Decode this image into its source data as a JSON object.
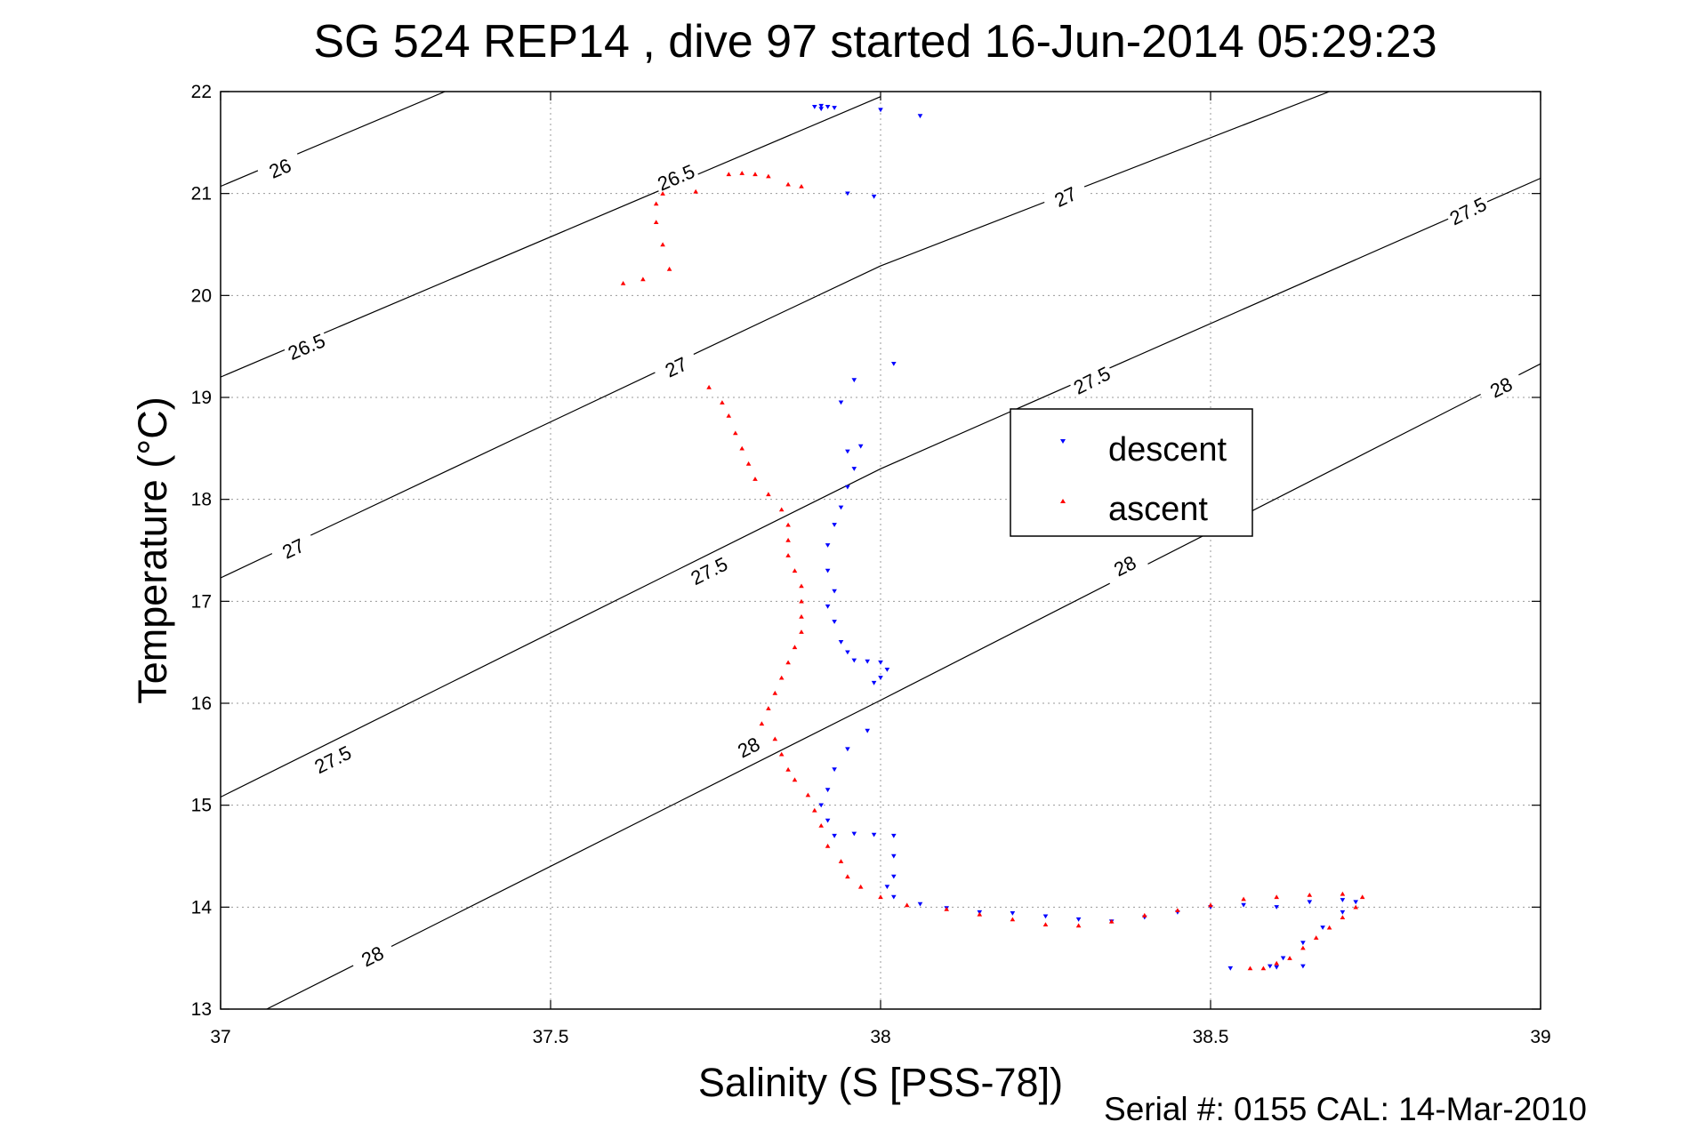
{
  "title": "SG 524   REP14  , dive 97 started 16-Jun-2014 05:29:23",
  "footer": "Serial #: 0155  CAL: 14-Mar-2010",
  "chart_data": {
    "type": "scatter",
    "xlabel": "Salinity (S [PSS-78])",
    "ylabel": "Temperature (°C)",
    "xlim": [
      37,
      39
    ],
    "ylim": [
      13,
      22
    ],
    "xticks": [
      37,
      37.5,
      38,
      38.5,
      39
    ],
    "xtick_labels": [
      "37",
      "37.5",
      "38",
      "38.5",
      "39"
    ],
    "yticks": [
      13,
      14,
      15,
      16,
      17,
      18,
      19,
      20,
      21,
      22
    ],
    "ytick_labels": [
      "13",
      "14",
      "15",
      "16",
      "17",
      "18",
      "19",
      "20",
      "21",
      "22"
    ],
    "grid": true,
    "legend_position": "right-center",
    "legend": [
      "descent",
      "ascent"
    ],
    "colors": {
      "descent": "#0000ff",
      "ascent": "#ff0000",
      "contour": "#000000"
    },
    "isopycnals": [
      {
        "label": "26",
        "points": [
          [
            37.0,
            21.07
          ],
          [
            37.34,
            22.0
          ]
        ],
        "label_positions": [
          [
            37.09,
            21.25
          ]
        ]
      },
      {
        "label": "26.5",
        "points": [
          [
            37.0,
            19.2
          ],
          [
            38.0,
            21.95
          ]
        ],
        "label_positions": [
          [
            37.13,
            19.5
          ],
          [
            37.69,
            21.16
          ]
        ]
      },
      {
        "label": "27",
        "points": [
          [
            37.0,
            17.23
          ],
          [
            38.0,
            20.29
          ],
          [
            38.68,
            22.0
          ]
        ],
        "label_positions": [
          [
            37.11,
            17.52
          ],
          [
            37.69,
            19.3
          ],
          [
            38.28,
            20.97
          ]
        ]
      },
      {
        "label": "27.5",
        "points": [
          [
            37.0,
            15.08
          ],
          [
            38.0,
            18.3
          ],
          [
            39.0,
            21.15
          ]
        ],
        "label_positions": [
          [
            37.17,
            15.45
          ],
          [
            37.74,
            17.3
          ],
          [
            38.32,
            19.17
          ],
          [
            38.89,
            20.83
          ]
        ]
      },
      {
        "label": "28",
        "points": [
          [
            37.07,
            13.0
          ],
          [
            38.0,
            16.03
          ],
          [
            39.0,
            19.33
          ]
        ],
        "label_positions": [
          [
            37.23,
            13.52
          ],
          [
            37.8,
            15.57
          ],
          [
            38.37,
            17.35
          ],
          [
            38.94,
            19.1
          ]
        ]
      }
    ],
    "series": [
      {
        "name": "descent",
        "marker": "triangle-down",
        "points": [
          [
            37.9,
            21.85
          ],
          [
            37.91,
            21.86
          ],
          [
            37.92,
            21.85
          ],
          [
            37.93,
            21.84
          ],
          [
            37.91,
            21.83
          ],
          [
            38.0,
            21.82
          ],
          [
            38.06,
            21.76
          ],
          [
            37.95,
            21.0
          ],
          [
            37.99,
            20.97
          ],
          [
            38.02,
            19.33
          ],
          [
            37.96,
            19.17
          ],
          [
            37.94,
            18.95
          ],
          [
            37.97,
            18.52
          ],
          [
            37.95,
            18.47
          ],
          [
            37.96,
            18.3
          ],
          [
            37.95,
            18.12
          ],
          [
            37.94,
            17.92
          ],
          [
            37.93,
            17.75
          ],
          [
            37.92,
            17.55
          ],
          [
            37.92,
            17.3
          ],
          [
            37.93,
            17.1
          ],
          [
            37.92,
            16.95
          ],
          [
            37.93,
            16.8
          ],
          [
            37.94,
            16.6
          ],
          [
            37.95,
            16.5
          ],
          [
            37.96,
            16.42
          ],
          [
            37.98,
            16.41
          ],
          [
            38.0,
            16.4
          ],
          [
            38.01,
            16.33
          ],
          [
            38.0,
            16.25
          ],
          [
            37.99,
            16.2
          ],
          [
            37.98,
            15.73
          ],
          [
            37.95,
            15.55
          ],
          [
            37.93,
            15.35
          ],
          [
            37.92,
            15.15
          ],
          [
            37.91,
            15.0
          ],
          [
            37.92,
            14.85
          ],
          [
            37.93,
            14.7
          ],
          [
            37.96,
            14.72
          ],
          [
            37.99,
            14.71
          ],
          [
            38.02,
            14.7
          ],
          [
            38.02,
            14.5
          ],
          [
            38.02,
            14.3
          ],
          [
            38.01,
            14.2
          ],
          [
            38.02,
            14.1
          ],
          [
            38.06,
            14.03
          ],
          [
            38.1,
            13.99
          ],
          [
            38.15,
            13.95
          ],
          [
            38.2,
            13.94
          ],
          [
            38.25,
            13.91
          ],
          [
            38.3,
            13.88
          ],
          [
            38.35,
            13.86
          ],
          [
            38.4,
            13.9
          ],
          [
            38.45,
            13.95
          ],
          [
            38.5,
            14.0
          ],
          [
            38.55,
            14.02
          ],
          [
            38.6,
            14.0
          ],
          [
            38.65,
            14.05
          ],
          [
            38.7,
            14.07
          ],
          [
            38.72,
            14.05
          ],
          [
            38.7,
            13.95
          ],
          [
            38.67,
            13.8
          ],
          [
            38.64,
            13.65
          ],
          [
            38.61,
            13.5
          ],
          [
            38.59,
            13.42
          ],
          [
            38.6,
            13.41
          ],
          [
            38.64,
            13.42
          ],
          [
            38.53,
            13.4
          ]
        ]
      },
      {
        "name": "ascent",
        "marker": "triangle-up",
        "points": [
          [
            37.77,
            21.19
          ],
          [
            37.79,
            21.2
          ],
          [
            37.81,
            21.19
          ],
          [
            37.83,
            21.17
          ],
          [
            37.86,
            21.09
          ],
          [
            37.88,
            21.07
          ],
          [
            37.72,
            21.02
          ],
          [
            37.67,
            21.0
          ],
          [
            37.66,
            20.9
          ],
          [
            37.66,
            20.72
          ],
          [
            37.67,
            20.5
          ],
          [
            37.68,
            20.26
          ],
          [
            37.64,
            20.16
          ],
          [
            37.61,
            20.12
          ],
          [
            37.74,
            19.1
          ],
          [
            37.76,
            18.95
          ],
          [
            37.77,
            18.82
          ],
          [
            37.78,
            18.65
          ],
          [
            37.79,
            18.5
          ],
          [
            37.8,
            18.35
          ],
          [
            37.81,
            18.2
          ],
          [
            37.83,
            18.05
          ],
          [
            37.85,
            17.9
          ],
          [
            37.86,
            17.75
          ],
          [
            37.86,
            17.6
          ],
          [
            37.86,
            17.45
          ],
          [
            37.87,
            17.3
          ],
          [
            37.88,
            17.15
          ],
          [
            37.88,
            17.0
          ],
          [
            37.88,
            16.85
          ],
          [
            37.88,
            16.7
          ],
          [
            37.87,
            16.55
          ],
          [
            37.86,
            16.4
          ],
          [
            37.85,
            16.25
          ],
          [
            37.84,
            16.1
          ],
          [
            37.83,
            15.95
          ],
          [
            37.82,
            15.8
          ],
          [
            37.84,
            15.65
          ],
          [
            37.85,
            15.5
          ],
          [
            37.86,
            15.35
          ],
          [
            37.87,
            15.25
          ],
          [
            37.89,
            15.1
          ],
          [
            37.9,
            14.95
          ],
          [
            37.91,
            14.8
          ],
          [
            37.92,
            14.6
          ],
          [
            37.94,
            14.45
          ],
          [
            37.95,
            14.3
          ],
          [
            37.97,
            14.2
          ],
          [
            38.0,
            14.1
          ],
          [
            38.04,
            14.02
          ],
          [
            38.1,
            13.98
          ],
          [
            38.15,
            13.93
          ],
          [
            38.2,
            13.88
          ],
          [
            38.25,
            13.83
          ],
          [
            38.3,
            13.82
          ],
          [
            38.35,
            13.86
          ],
          [
            38.4,
            13.92
          ],
          [
            38.45,
            13.97
          ],
          [
            38.5,
            14.02
          ],
          [
            38.55,
            14.08
          ],
          [
            38.6,
            14.1
          ],
          [
            38.65,
            14.12
          ],
          [
            38.7,
            14.13
          ],
          [
            38.73,
            14.1
          ],
          [
            38.72,
            14.0
          ],
          [
            38.7,
            13.9
          ],
          [
            38.68,
            13.8
          ],
          [
            38.66,
            13.7
          ],
          [
            38.64,
            13.6
          ],
          [
            38.62,
            13.5
          ],
          [
            38.6,
            13.45
          ],
          [
            38.58,
            13.4
          ],
          [
            38.56,
            13.4
          ]
        ]
      }
    ]
  }
}
